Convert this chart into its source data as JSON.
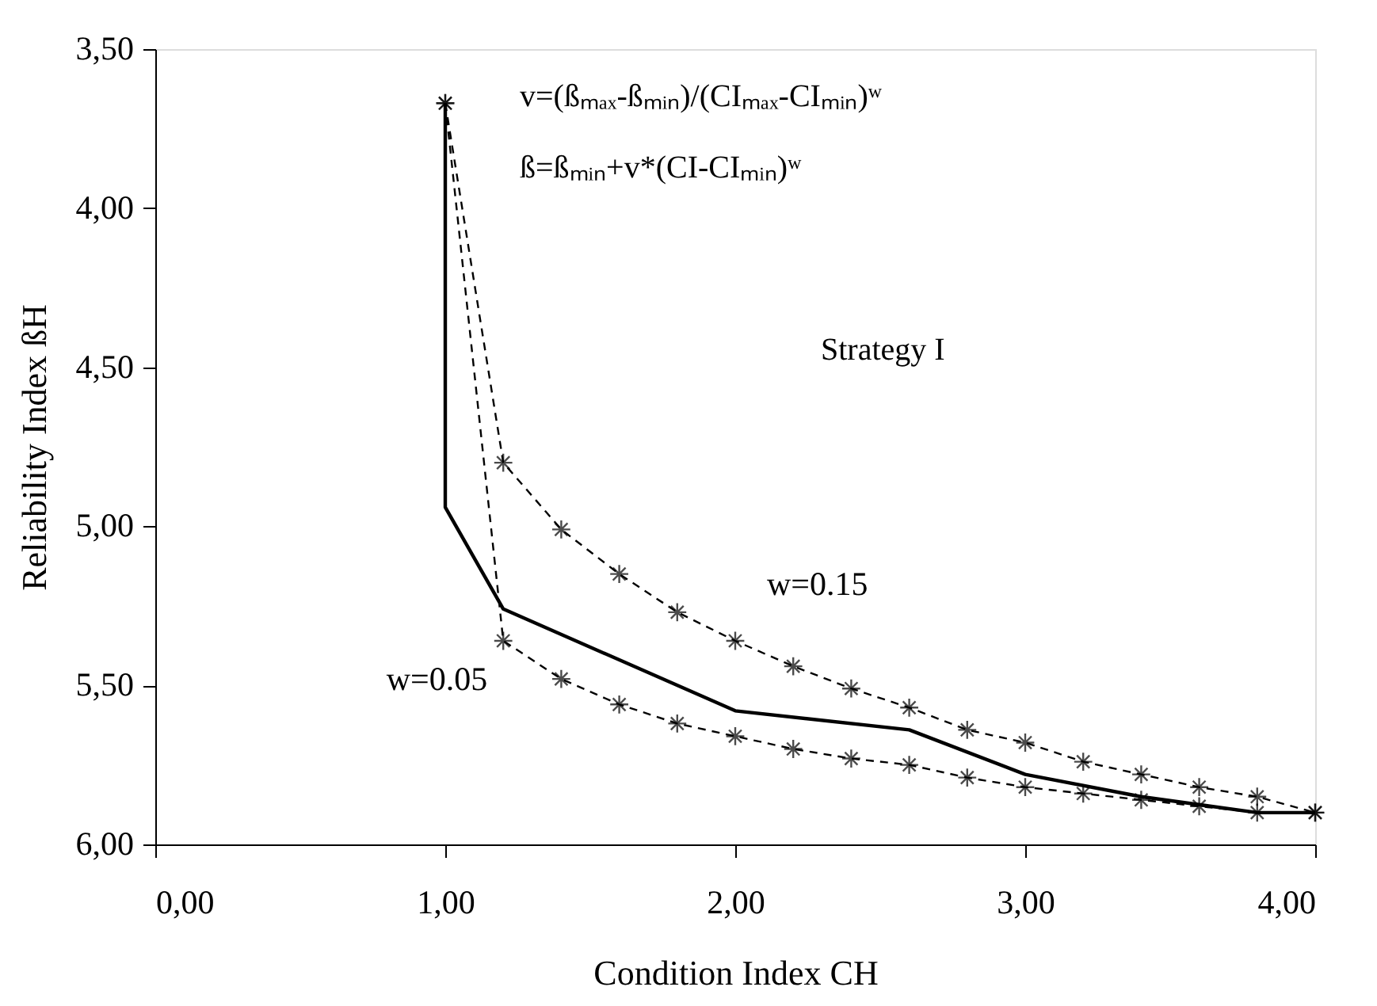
{
  "chart_data": {
    "type": "line",
    "xlabel": "Condition Index CH",
    "ylabel": "Reliability Index ßH",
    "xlim": [
      0,
      4
    ],
    "ylim": [
      6.0,
      3.5
    ],
    "xticks": [
      {
        "value": 0,
        "label": "0,00"
      },
      {
        "value": 1,
        "label": "1,00"
      },
      {
        "value": 2,
        "label": "2,00"
      },
      {
        "value": 3,
        "label": "3,00"
      },
      {
        "value": 4,
        "label": "4,00"
      }
    ],
    "yticks": [
      {
        "value": 3.5,
        "label": "3,50"
      },
      {
        "value": 4.0,
        "label": "4,00"
      },
      {
        "value": 4.5,
        "label": "4,50"
      },
      {
        "value": 5.0,
        "label": "5,00"
      },
      {
        "value": 5.5,
        "label": "5,50"
      },
      {
        "value": 6.0,
        "label": "6,00"
      }
    ],
    "grid": false,
    "series": [
      {
        "color": "#000000",
        "line_style": "solid",
        "marker": "none",
        "x": [
          1.0,
          1.0,
          1.2,
          2.0,
          2.6,
          3.0,
          3.4,
          3.8,
          4.0
        ],
        "values": [
          3.67,
          4.94,
          5.26,
          5.58,
          5.64,
          5.78,
          5.85,
          5.9,
          5.9
        ]
      },
      {
        "name": "w=0.15",
        "color": "#000000",
        "line_style": "dashed",
        "marker": "cross",
        "x": [
          1.0,
          1.2,
          1.4,
          1.6,
          1.8,
          2.0,
          2.2,
          2.4,
          2.6,
          2.8,
          3.0,
          3.2,
          3.4,
          3.6,
          3.8,
          4.0
        ],
        "values": [
          3.67,
          4.8,
          5.01,
          5.15,
          5.27,
          5.36,
          5.44,
          5.51,
          5.57,
          5.64,
          5.68,
          5.74,
          5.78,
          5.82,
          5.85,
          5.9
        ]
      },
      {
        "name": "w=0.05",
        "color": "#000000",
        "line_style": "dashed",
        "marker": "cross",
        "x": [
          1.0,
          1.2,
          1.4,
          1.6,
          1.8,
          2.0,
          2.2,
          2.4,
          2.6,
          2.8,
          3.0,
          3.2,
          3.4,
          3.6,
          3.8,
          4.0
        ],
        "values": [
          3.67,
          5.36,
          5.48,
          5.56,
          5.62,
          5.66,
          5.7,
          5.73,
          5.75,
          5.79,
          5.82,
          5.84,
          5.86,
          5.88,
          5.9,
          5.9
        ]
      }
    ],
    "annotations": [
      "v=(ßₘₐₓ-ßₘᵢₙ)/(CIₘₐₓ-CIₘᵢₙ)ʷ",
      "ß=ßₘᵢₙ+v*(CI-CIₘᵢₙ)ʷ",
      "Strategy I"
    ]
  }
}
